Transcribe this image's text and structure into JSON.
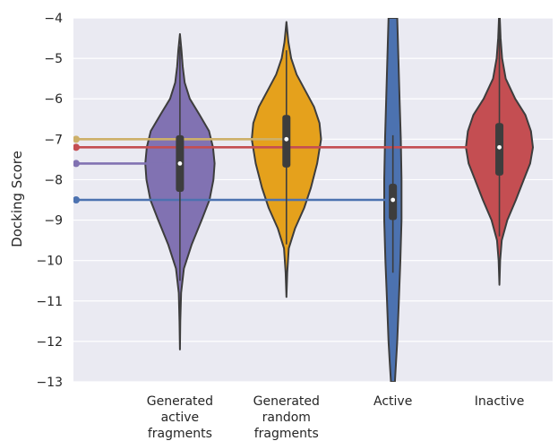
{
  "chart_data": {
    "type": "violin",
    "ylabel": "Docking Score",
    "ylim": [
      -13,
      -4
    ],
    "yticks": [
      -4,
      -5,
      -6,
      -7,
      -8,
      -9,
      -10,
      -11,
      -12,
      -13
    ],
    "ytick_labels": [
      "−4",
      "−5",
      "−6",
      "−7",
      "−8",
      "−9",
      "−10",
      "−11",
      "−12",
      "−13"
    ],
    "grid": true,
    "x_positions": [
      1,
      2,
      3,
      4
    ],
    "xlim": [
      0,
      4.5
    ],
    "categories": [
      {
        "label_lines": [
          "Generated",
          "active",
          "fragments"
        ]
      },
      {
        "label_lines": [
          "Generated",
          "random",
          "fragments"
        ]
      },
      {
        "label_lines": [
          "Active"
        ]
      },
      {
        "label_lines": [
          "Inactive"
        ]
      }
    ],
    "series": [
      {
        "color": "#8172B2",
        "min": -12.2,
        "max": -4.4,
        "q1": -8.3,
        "median": -7.6,
        "q3": -6.9,
        "whisker_low": -10.5,
        "whisker_high": -4.7,
        "density": [
          [
            -12.2,
            0.0
          ],
          [
            -11.5,
            0.01
          ],
          [
            -10.8,
            0.03
          ],
          [
            -10.2,
            0.1
          ],
          [
            -9.6,
            0.3
          ],
          [
            -9.0,
            0.55
          ],
          [
            -8.5,
            0.75
          ],
          [
            -8.0,
            0.85
          ],
          [
            -7.6,
            0.88
          ],
          [
            -7.2,
            0.84
          ],
          [
            -6.8,
            0.74
          ],
          [
            -6.4,
            0.5
          ],
          [
            -6.0,
            0.25
          ],
          [
            -5.6,
            0.12
          ],
          [
            -5.2,
            0.07
          ],
          [
            -4.8,
            0.04
          ],
          [
            -4.4,
            0.0
          ]
        ]
      },
      {
        "color": "#E5A11C",
        "min": -10.9,
        "max": -4.1,
        "q1": -7.7,
        "median": -7.0,
        "q3": -6.4,
        "whisker_low": -9.6,
        "whisker_high": -4.8,
        "density": [
          [
            -10.9,
            0.0
          ],
          [
            -10.3,
            0.02
          ],
          [
            -9.7,
            0.06
          ],
          [
            -9.2,
            0.22
          ],
          [
            -8.7,
            0.45
          ],
          [
            -8.2,
            0.62
          ],
          [
            -7.6,
            0.78
          ],
          [
            -7.0,
            0.88
          ],
          [
            -6.6,
            0.84
          ],
          [
            -6.2,
            0.7
          ],
          [
            -5.8,
            0.48
          ],
          [
            -5.4,
            0.26
          ],
          [
            -5.0,
            0.12
          ],
          [
            -4.6,
            0.05
          ],
          [
            -4.1,
            0.0
          ]
        ]
      },
      {
        "color": "#4C72B0",
        "min": -13.0,
        "max": -4.0,
        "q1": -9.0,
        "median": -8.5,
        "q3": -8.1,
        "whisker_low": -10.3,
        "whisker_high": -6.9,
        "clipped": true,
        "density": [
          [
            -13.0,
            0.05
          ],
          [
            -12.5,
            0.08
          ],
          [
            -12.0,
            0.11
          ],
          [
            -11.0,
            0.15
          ],
          [
            -10.0,
            0.19
          ],
          [
            -9.0,
            0.22
          ],
          [
            -8.0,
            0.22
          ],
          [
            -7.0,
            0.2
          ],
          [
            -6.0,
            0.17
          ],
          [
            -5.0,
            0.14
          ],
          [
            -4.0,
            0.11
          ]
        ]
      },
      {
        "color": "#C44E52",
        "min": -10.6,
        "max": -4.0,
        "q1": -7.9,
        "median": -7.2,
        "q3": -6.6,
        "whisker_low": -9.4,
        "whisker_high": -4.2,
        "density": [
          [
            -10.6,
            0.0
          ],
          [
            -10.0,
            0.02
          ],
          [
            -9.5,
            0.06
          ],
          [
            -9.0,
            0.2
          ],
          [
            -8.5,
            0.42
          ],
          [
            -8.0,
            0.62
          ],
          [
            -7.6,
            0.78
          ],
          [
            -7.2,
            0.85
          ],
          [
            -6.8,
            0.8
          ],
          [
            -6.4,
            0.66
          ],
          [
            -6.0,
            0.4
          ],
          [
            -5.5,
            0.16
          ],
          [
            -5.0,
            0.07
          ],
          [
            -4.5,
            0.03
          ],
          [
            -4.0,
            0.01
          ]
        ]
      }
    ],
    "reference_lines": [
      {
        "color": "#CDB06A",
        "value": -7.0,
        "x_end": 2
      },
      {
        "color": "#C44E52",
        "value": -7.2,
        "x_end": 4
      },
      {
        "color": "#8172B2",
        "value": -7.6,
        "x_end": 1
      },
      {
        "color": "#4C72B0",
        "value": -8.5,
        "x_end": 3
      }
    ]
  }
}
